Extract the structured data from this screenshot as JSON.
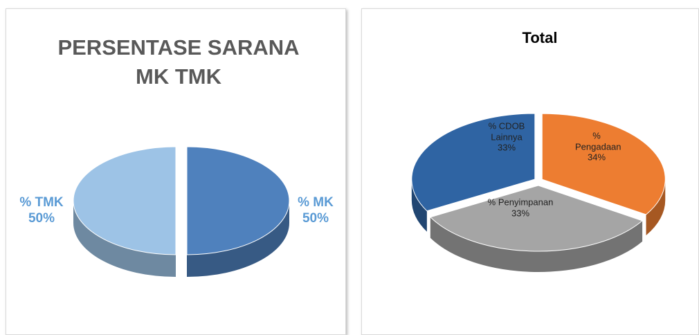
{
  "chart_data": [
    {
      "type": "pie",
      "title": "PERSENTASE SARANA MK TMK",
      "categories": [
        "% MK",
        "% TMK"
      ],
      "values": [
        50,
        50
      ],
      "value_labels": [
        "50%",
        "50%"
      ],
      "colors": [
        "#4f81bd",
        "#9dc3e6"
      ]
    },
    {
      "type": "pie",
      "title": "Total",
      "categories": [
        "% Pengadaan",
        "% Penyimpanan",
        "% CDOB Lainnya"
      ],
      "values": [
        34,
        33,
        33
      ],
      "value_labels": [
        "34%",
        "33%",
        "33%"
      ],
      "colors": [
        "#ed7d31",
        "#a5a5a5",
        "#2f64a3"
      ]
    }
  ]
}
